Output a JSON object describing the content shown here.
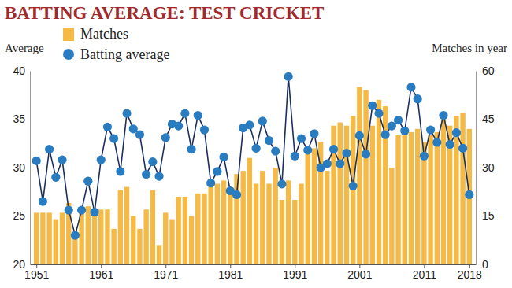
{
  "chart_data": {
    "type": "bar",
    "title": "BATTING AVERAGE: TEST CRICKET",
    "y_label": "Average",
    "y2_label": "Matches in year",
    "x": [
      1951,
      1952,
      1953,
      1954,
      1955,
      1956,
      1957,
      1958,
      1959,
      1960,
      1961,
      1962,
      1963,
      1964,
      1965,
      1966,
      1967,
      1968,
      1969,
      1970,
      1971,
      1972,
      1973,
      1974,
      1975,
      1976,
      1977,
      1978,
      1979,
      1980,
      1981,
      1982,
      1983,
      1984,
      1985,
      1986,
      1987,
      1988,
      1989,
      1990,
      1991,
      1992,
      1993,
      1994,
      1995,
      1996,
      1997,
      1998,
      1999,
      2000,
      2001,
      2002,
      2003,
      2004,
      2005,
      2006,
      2007,
      2008,
      2009,
      2010,
      2011,
      2012,
      2013,
      2014,
      2015,
      2016,
      2017,
      2018
    ],
    "series": [
      {
        "name": "Matches",
        "type": "bar",
        "axis": "y2",
        "color": "#f5b945",
        "values": [
          16,
          16,
          16,
          14,
          16,
          19,
          10,
          17,
          18,
          17,
          17,
          17,
          11,
          23,
          24,
          15,
          11,
          17,
          23,
          6,
          16,
          14,
          21,
          21,
          15,
          22,
          22,
          26,
          25,
          26,
          22,
          28,
          29,
          33,
          25,
          29,
          25,
          30,
          20,
          26,
          20,
          25,
          35,
          36,
          38,
          29,
          43,
          44,
          43,
          46,
          55,
          54,
          43,
          51,
          49,
          30,
          40,
          41,
          41,
          42,
          38,
          40,
          41,
          47,
          43,
          46,
          47,
          42
        ]
      },
      {
        "name": "Batting average",
        "type": "line",
        "marker": "circle",
        "color": "#2a7cc0",
        "values": [
          30.7,
          26.5,
          31.9,
          29.0,
          30.8,
          25.6,
          23.0,
          25.6,
          28.6,
          25.4,
          30.8,
          34.2,
          33.0,
          29.6,
          35.6,
          34.0,
          33.4,
          29.3,
          30.6,
          29.1,
          33.1,
          34.5,
          34.3,
          35.6,
          31.9,
          35.4,
          33.9,
          28.4,
          29.6,
          31.1,
          27.6,
          27.2,
          34.1,
          34.4,
          32.0,
          34.8,
          32.8,
          31.7,
          28.3,
          39.4,
          31.2,
          33.0,
          31.8,
          33.5,
          30.0,
          30.4,
          31.9,
          30.4,
          31.5,
          28.1,
          33.3,
          31.4,
          36.4,
          35.6,
          33.4,
          34.3,
          34.9,
          33.8,
          38.3,
          37.1,
          31.2,
          33.9,
          32.6,
          35.4,
          32.4,
          33.6,
          32.0,
          27.2
        ]
      }
    ],
    "xlim": [
      1950,
      2019
    ],
    "xticks": [
      1951,
      1961,
      1971,
      1981,
      1991,
      2001,
      2011,
      2018
    ],
    "ylim": [
      20,
      40
    ],
    "yticks": [
      20,
      25,
      30,
      35,
      40
    ],
    "y2lim": [
      0,
      60
    ],
    "y2ticks": [
      0,
      15,
      30,
      45,
      60
    ],
    "grid": false,
    "legend": "top-left"
  }
}
